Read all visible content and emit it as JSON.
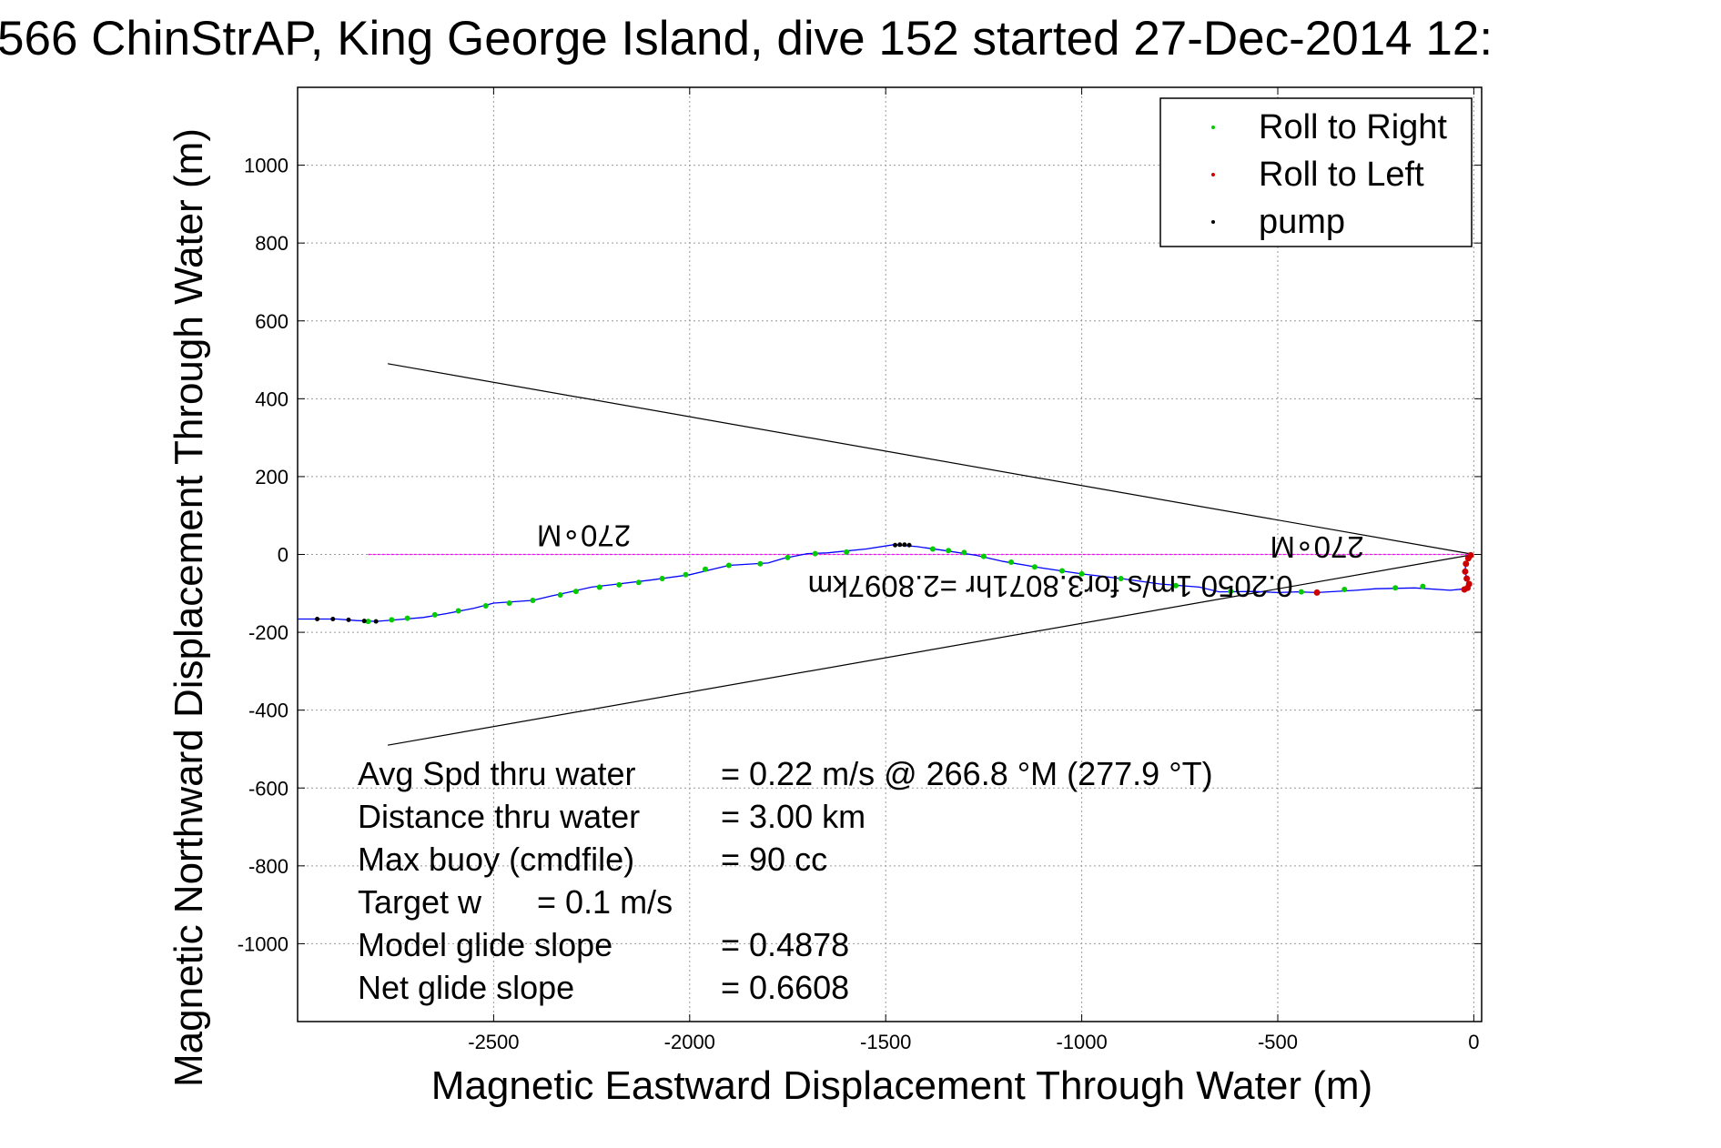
{
  "chart_data": {
    "type": "line",
    "title": "566 ChinStrAP, King George Island, dive 152 started 27-Dec-2014 12:",
    "xlabel": "Magnetic Eastward Displacement Through Water (m)",
    "ylabel": "Magnetic Northward Displacement Through Water (m)",
    "xlim": [
      -3000,
      20
    ],
    "ylim": [
      -1200,
      1200
    ],
    "xticks": [
      -2500,
      -2000,
      -1500,
      -1000,
      -500,
      0
    ],
    "yticks": [
      1000,
      800,
      600,
      400,
      200,
      0,
      -200,
      -400,
      -600,
      -800,
      -1000
    ],
    "grid": true,
    "legend_position": "top-right",
    "legend": [
      {
        "label": "Roll to Right",
        "color": "#00cc00"
      },
      {
        "label": "Roll to Left",
        "color": "#cc0000"
      },
      {
        "label": "pump",
        "color": "#000000"
      }
    ],
    "track": {
      "name": "track",
      "color": "#0000ff",
      "points": [
        [
          0,
          0
        ],
        [
          -12,
          -5
        ],
        [
          -20,
          -20
        ],
        [
          -22,
          -40
        ],
        [
          -18,
          -65
        ],
        [
          -10,
          -80
        ],
        [
          -20,
          -88
        ],
        [
          -60,
          -92
        ],
        [
          -150,
          -86
        ],
        [
          -250,
          -88
        ],
        [
          -300,
          -92
        ],
        [
          -400,
          -98
        ],
        [
          -450,
          -96
        ],
        [
          -500,
          -98
        ],
        [
          -560,
          -95
        ],
        [
          -650,
          -96
        ],
        [
          -700,
          -84
        ],
        [
          -800,
          -76
        ],
        [
          -900,
          -62
        ],
        [
          -1000,
          -50
        ],
        [
          -1100,
          -35
        ],
        [
          -1200,
          -18
        ],
        [
          -1270,
          -2
        ],
        [
          -1350,
          10
        ],
        [
          -1420,
          20
        ],
        [
          -1480,
          25
        ],
        [
          -1550,
          14
        ],
        [
          -1650,
          4
        ],
        [
          -1700,
          2
        ],
        [
          -1760,
          -10
        ],
        [
          -1800,
          -22
        ],
        [
          -1900,
          -28
        ],
        [
          -2000,
          -52
        ],
        [
          -2100,
          -66
        ],
        [
          -2200,
          -78
        ],
        [
          -2250,
          -84
        ],
        [
          -2300,
          -95
        ],
        [
          -2350,
          -106
        ],
        [
          -2400,
          -118
        ],
        [
          -2500,
          -125
        ],
        [
          -2550,
          -138
        ],
        [
          -2620,
          -152
        ],
        [
          -2680,
          -162
        ],
        [
          -2750,
          -168
        ],
        [
          -2800,
          -172
        ],
        [
          -2850,
          -170
        ],
        [
          -2900,
          -166
        ],
        [
          -3000,
          -166
        ]
      ]
    },
    "roll_right_points": [
      [
        -130,
        -82
      ],
      [
        -200,
        -86
      ],
      [
        -330,
        -90
      ],
      [
        -440,
        -96
      ],
      [
        -620,
        -95
      ],
      [
        -760,
        -80
      ],
      [
        -900,
        -62
      ],
      [
        -1000,
        -50
      ],
      [
        -1050,
        -42
      ],
      [
        -1120,
        -32
      ],
      [
        -1180,
        -20
      ],
      [
        -1250,
        -5
      ],
      [
        -1300,
        5
      ],
      [
        -1340,
        10
      ],
      [
        -1380,
        14
      ],
      [
        -1600,
        6
      ],
      [
        -1680,
        2
      ],
      [
        -1750,
        -8
      ],
      [
        -1820,
        -24
      ],
      [
        -1900,
        -28
      ],
      [
        -1960,
        -38
      ],
      [
        -2010,
        -52
      ],
      [
        -2070,
        -62
      ],
      [
        -2130,
        -72
      ],
      [
        -2180,
        -78
      ],
      [
        -2230,
        -84
      ],
      [
        -2290,
        -95
      ],
      [
        -2330,
        -104
      ],
      [
        -2400,
        -118
      ],
      [
        -2460,
        -125
      ],
      [
        -2520,
        -132
      ],
      [
        -2590,
        -145
      ],
      [
        -2650,
        -155
      ],
      [
        -2720,
        -164
      ],
      [
        -2760,
        -168
      ],
      [
        -2820,
        -172
      ]
    ],
    "roll_left_points": [
      [
        -400,
        -98
      ],
      [
        -8,
        -2
      ],
      [
        -14,
        -10
      ],
      [
        -20,
        -24
      ],
      [
        -22,
        -44
      ],
      [
        -18,
        -62
      ],
      [
        -12,
        -76
      ],
      [
        -16,
        -86
      ],
      [
        -24,
        -90
      ]
    ],
    "pump_points": [
      [
        -1440,
        24
      ],
      [
        -1452,
        25
      ],
      [
        -1464,
        25
      ],
      [
        -1476,
        24
      ],
      [
        -2800,
        -172
      ],
      [
        -2830,
        -171
      ],
      [
        -2870,
        -168
      ],
      [
        -2910,
        -166
      ],
      [
        -2950,
        -166
      ]
    ],
    "heading_line": {
      "color": "#ff00ff",
      "x": [
        -2820,
        0
      ],
      "y": [
        0,
        0
      ]
    },
    "wedge_lines": [
      {
        "color": "#000000",
        "x": [
          -2770,
          0
        ],
        "y": [
          490,
          0
        ]
      },
      {
        "color": "#000000",
        "x": [
          -2770,
          0
        ],
        "y": [
          -490,
          0
        ]
      }
    ],
    "annotations_upside_down": [
      {
        "text": "270∘M",
        "x": -2270,
        "y": 75
      },
      {
        "text": "270∘M",
        "x": -400,
        "y": 45
      },
      {
        "text": "0.2050 1m/s for3.8071hr =2.8097km",
        "x": -1080,
        "y": -55
      }
    ],
    "stats": [
      {
        "label": "Avg Spd thru water",
        "value": "=  0.22 m/s @ 266.8 °M (277.9 °T)"
      },
      {
        "label": "Distance thru water",
        "value": "=  3.00 km"
      },
      {
        "label": "Max buoy (cmdfile)",
        "value": "= 90 cc"
      },
      {
        "label": "Target w",
        "value": "= 0.1 m/s"
      },
      {
        "label": "Model glide slope",
        "value": "= 0.4878"
      },
      {
        "label": "Net glide slope",
        "value": "= 0.6608"
      }
    ]
  }
}
